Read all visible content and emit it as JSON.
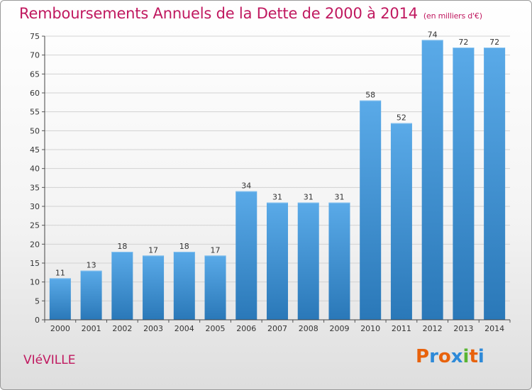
{
  "header": {
    "title": "Remboursements Annuels de la Dette de 2000 à 2014",
    "subtitle": "(en milliers d'€)"
  },
  "footer": {
    "commune": "VIéVILLE",
    "logo_letters": [
      "P",
      "r",
      "o",
      "x",
      "i",
      "t",
      "i"
    ],
    "logo_colors": [
      "#e8620c",
      "#2e8ad8",
      "#e8620c",
      "#2e8ad8",
      "#59b532",
      "#e8620c",
      "#2e8ad8"
    ]
  },
  "chart_data": {
    "type": "bar",
    "title": "Remboursements Annuels de la Dette de 2000 à 2014",
    "subtitle": "(en milliers d'€)",
    "categories": [
      "2000",
      "2001",
      "2002",
      "2003",
      "2004",
      "2005",
      "2006",
      "2007",
      "2008",
      "2009",
      "2010",
      "2011",
      "2012",
      "2013",
      "2014"
    ],
    "values": [
      11,
      13,
      18,
      17,
      18,
      17,
      34,
      31,
      31,
      31,
      58,
      52,
      74,
      72,
      72
    ],
    "ylim": [
      0,
      75
    ],
    "yticks": [
      0,
      5,
      10,
      15,
      20,
      25,
      30,
      35,
      40,
      45,
      50,
      55,
      60,
      65,
      70,
      75
    ],
    "grid": true,
    "bar_color_top": "#5aaae8",
    "bar_color_bottom": "#2a78b8"
  }
}
